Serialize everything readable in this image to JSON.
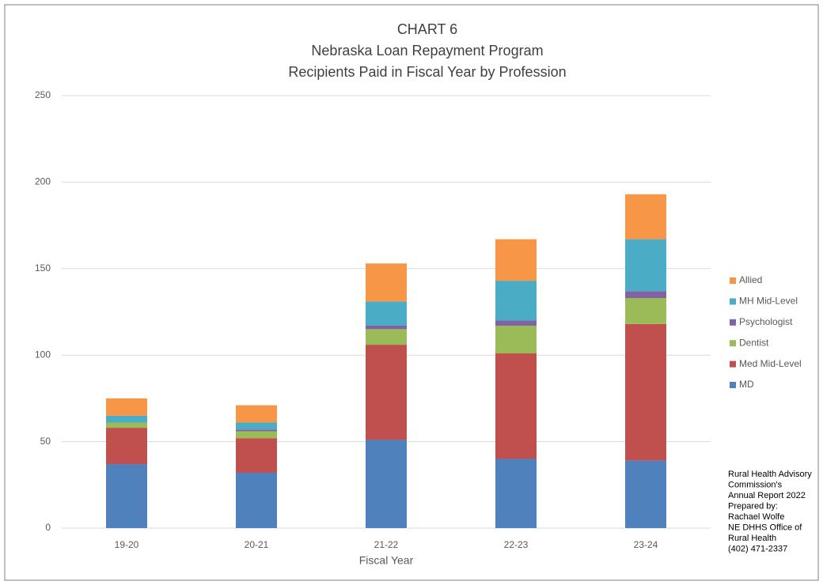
{
  "chart_data": {
    "type": "stacked_bar",
    "title": [
      "CHART 6",
      "Nebraska Loan Repayment Program",
      "Recipients Paid in Fiscal Year by Profession"
    ],
    "x_label": "Fiscal Year",
    "categories": [
      "19-20",
      "20-21",
      "21-22",
      "22-23",
      "23-24"
    ],
    "series": [
      {
        "name": "MD",
        "color": "#4f81bd",
        "values": [
          37,
          32,
          51,
          40,
          39
        ]
      },
      {
        "name": "Med Mid-Level",
        "color": "#c0504d",
        "values": [
          21,
          20,
          55,
          61,
          79
        ]
      },
      {
        "name": "Dentist",
        "color": "#9bbb59",
        "values": [
          3,
          4,
          9,
          16,
          15
        ]
      },
      {
        "name": "Psychologist",
        "color": "#8064a2",
        "values": [
          0,
          1,
          2,
          3,
          4
        ]
      },
      {
        "name": "MH Mid-Level",
        "color": "#4bacc6",
        "values": [
          4,
          4,
          14,
          23,
          30
        ]
      },
      {
        "name": "Allied",
        "color": "#f79646",
        "values": [
          10,
          10,
          22,
          24,
          26
        ]
      }
    ],
    "ylim": [
      0,
      250
    ],
    "yticks": [
      0,
      50,
      100,
      150,
      200,
      250
    ],
    "grid": true,
    "legend": "right",
    "note": [
      "Rural Health Advisory",
      "Commission's",
      "Annual Report 2022",
      "Prepared by:",
      "Rachael Wolfe",
      "NE DHHS Office of",
      "Rural Health",
      "(402) 471-2337"
    ]
  }
}
